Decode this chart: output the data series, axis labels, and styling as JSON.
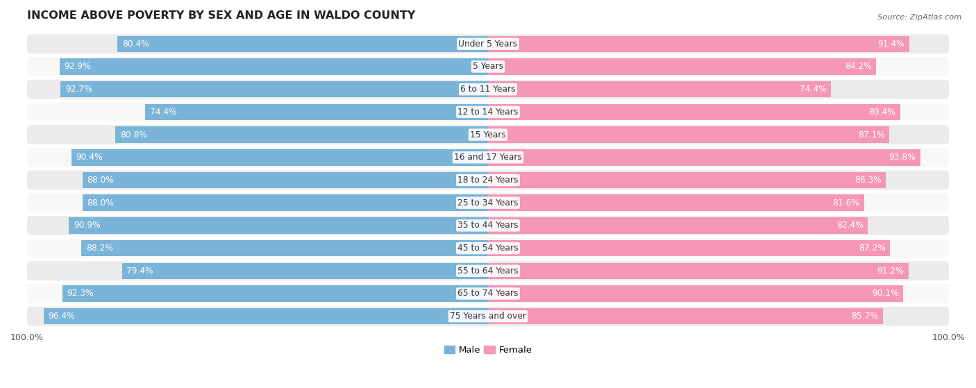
{
  "title": "INCOME ABOVE POVERTY BY SEX AND AGE IN WALDO COUNTY",
  "source": "Source: ZipAtlas.com",
  "categories": [
    "Under 5 Years",
    "5 Years",
    "6 to 11 Years",
    "12 to 14 Years",
    "15 Years",
    "16 and 17 Years",
    "18 to 24 Years",
    "25 to 34 Years",
    "35 to 44 Years",
    "45 to 54 Years",
    "55 to 64 Years",
    "65 to 74 Years",
    "75 Years and over"
  ],
  "male_values": [
    80.4,
    92.9,
    92.7,
    74.4,
    80.8,
    90.4,
    88.0,
    88.0,
    90.9,
    88.2,
    79.4,
    92.3,
    96.4
  ],
  "female_values": [
    91.4,
    84.2,
    74.4,
    89.4,
    87.1,
    93.8,
    86.3,
    81.6,
    82.4,
    87.2,
    91.2,
    90.1,
    85.7
  ],
  "male_color": "#7ab4d8",
  "female_color": "#f497b8",
  "bg_color_even": "#ebebeb",
  "bg_color_odd": "#f8f8f8",
  "max_value": 100.0,
  "title_fontsize": 11.5,
  "label_fontsize": 8.8,
  "tick_fontsize": 9,
  "legend_fontsize": 9.5
}
